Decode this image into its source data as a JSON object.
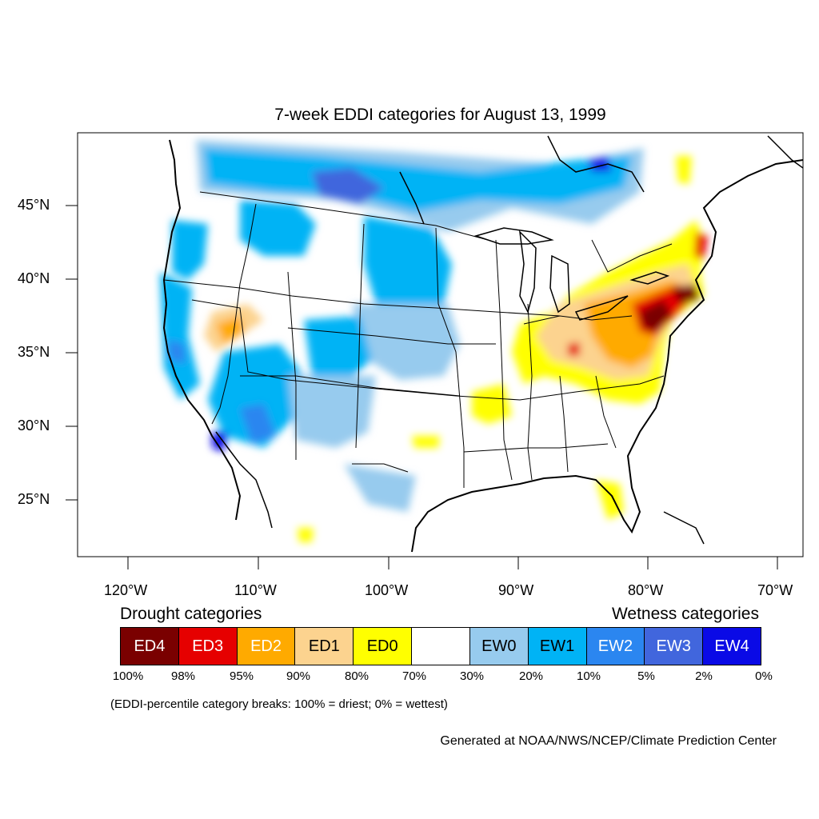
{
  "title": "7-week EDDI categories for August 13, 1999",
  "lat_labels": [
    "45°N",
    "40°N",
    "35°N",
    "30°N",
    "25°N"
  ],
  "lon_labels": [
    "120°W",
    "110°W",
    "100°W",
    "90°W",
    "80°W",
    "70°W"
  ],
  "legend": {
    "drought_title": "Drought categories",
    "wetness_title": "Wetness categories",
    "categories": [
      {
        "label": "ED4",
        "color": "#7a0000",
        "text_color": "#ffffff"
      },
      {
        "label": "ED3",
        "color": "#e60000",
        "text_color": "#ffffff"
      },
      {
        "label": "ED2",
        "color": "#ffaa00",
        "text_color": "#ffffff"
      },
      {
        "label": "ED1",
        "color": "#fcd38f",
        "text_color": "#000000"
      },
      {
        "label": "ED0",
        "color": "#ffff00",
        "text_color": "#000000"
      },
      {
        "label": "",
        "color": "#ffffff",
        "text_color": "#000000"
      },
      {
        "label": "EW0",
        "color": "#97cbee",
        "text_color": "#000000"
      },
      {
        "label": "EW1",
        "color": "#00b3f5",
        "text_color": "#000000"
      },
      {
        "label": "EW2",
        "color": "#2b86f0",
        "text_color": "#ffffff"
      },
      {
        "label": "EW3",
        "color": "#4166dd",
        "text_color": "#ffffff"
      },
      {
        "label": "EW4",
        "color": "#0a0ae6",
        "text_color": "#ffffff"
      }
    ],
    "breaks": [
      "100%",
      "98%",
      "95%",
      "90%",
      "80%",
      "70%",
      "30%",
      "20%",
      "10%",
      "5%",
      "2%",
      "0%"
    ]
  },
  "note": "(EDDI-percentile category breaks: 100% = driest; 0% = wettest)",
  "credit": "Generated at NOAA/NWS/NCEP/Climate Prediction Center"
}
